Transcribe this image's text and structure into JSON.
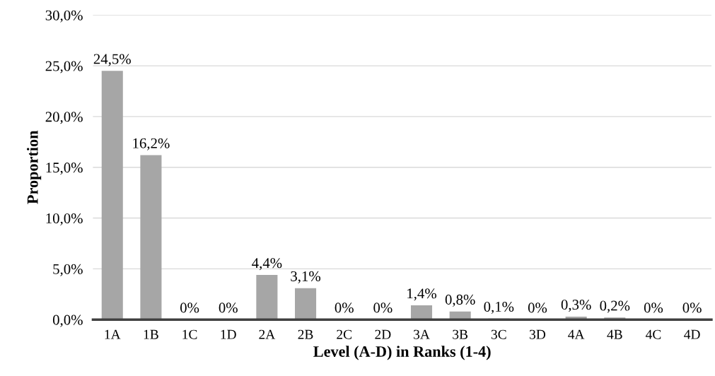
{
  "chart_data": {
    "type": "bar",
    "xlabel": "Level (A-D) in Ranks (1-4)",
    "ylabel": "Proportion",
    "categories": [
      "1A",
      "1B",
      "1C",
      "1D",
      "2A",
      "2B",
      "2C",
      "2D",
      "3A",
      "3B",
      "3C",
      "3D",
      "4A",
      "4B",
      "4C",
      "4D"
    ],
    "values": [
      24.5,
      16.2,
      0,
      0,
      4.4,
      3.1,
      0,
      0,
      1.4,
      0.8,
      0.1,
      0,
      0.3,
      0.2,
      0,
      0
    ],
    "value_labels": [
      "24,5%",
      "16,2%",
      "0%",
      "0%",
      "4,4%",
      "3,1%",
      "0%",
      "0%",
      "1,4%",
      "0,8%",
      "0,1%",
      "0%",
      "0,3%",
      "0,2%",
      "0%",
      "0%"
    ],
    "color": "#a6a6a6",
    "ylim": [
      0,
      30
    ],
    "yticks": [
      {
        "value": 0,
        "label": "0,0%"
      },
      {
        "value": 5,
        "label": "5,0%"
      },
      {
        "value": 10,
        "label": "10,0%"
      },
      {
        "value": 15,
        "label": "15,0%"
      },
      {
        "value": 20,
        "label": "20,0%"
      },
      {
        "value": 25,
        "label": "25,0%"
      },
      {
        "value": 30,
        "label": "30,0%"
      }
    ],
    "grid": "y"
  }
}
